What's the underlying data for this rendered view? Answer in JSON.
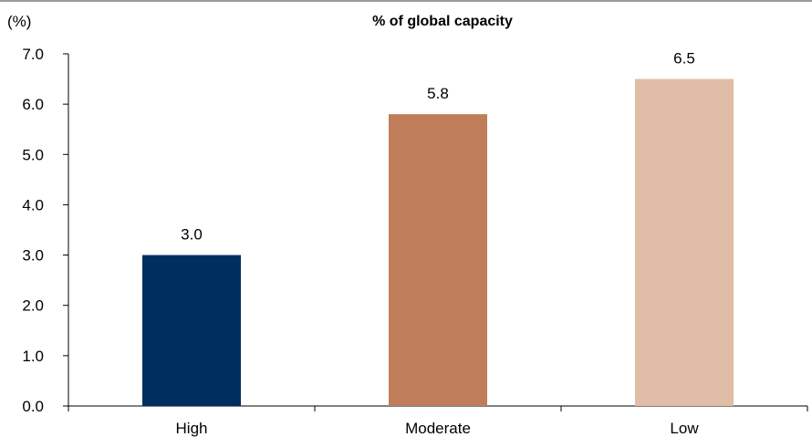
{
  "chart_data": {
    "type": "bar",
    "title": "% of global capacity",
    "unit_label": "(%)",
    "categories": [
      "High",
      "Moderate",
      "Low"
    ],
    "values": [
      3.0,
      5.8,
      6.5
    ],
    "value_labels": [
      "3.0",
      "5.8",
      "6.5"
    ],
    "colors": [
      "#002f5f",
      "#c07d59",
      "#dfbda7"
    ],
    "ylim": [
      0,
      7
    ],
    "yticks": [
      "0.0",
      "1.0",
      "2.0",
      "3.0",
      "4.0",
      "5.0",
      "6.0",
      "7.0"
    ],
    "xlabel": "",
    "ylabel": "",
    "grid": false,
    "legend": "none"
  }
}
